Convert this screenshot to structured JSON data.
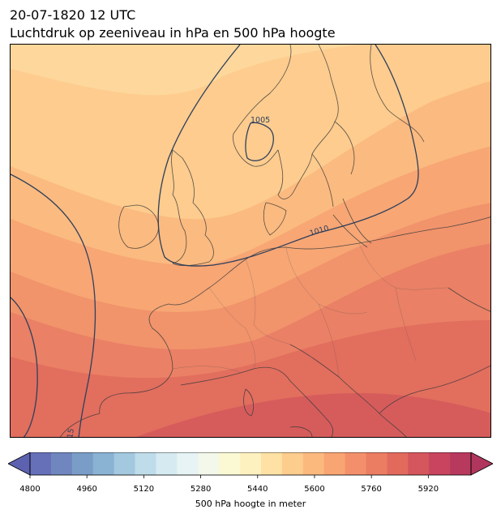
{
  "header": {
    "datetime": "20-07-1820 12 UTC",
    "subtitle": "Luchtdruk op zeeniveau in hPa en 500 hPa hoogte"
  },
  "map": {
    "contour_labels": [
      "1005",
      "1010",
      "15"
    ],
    "colors": {
      "pressure_contour": "#2e3f5c",
      "coastline": "#3a3a3a"
    },
    "fill_bands": [
      "#fdd59a",
      "#fdc689",
      "#fbb47c",
      "#f7a174",
      "#f08d6a",
      "#e97a62",
      "#e06a5c",
      "#d4565a"
    ]
  },
  "colorbar": {
    "ticks": [
      "4800",
      "4960",
      "5120",
      "5280",
      "5440",
      "5600",
      "5760",
      "5920"
    ],
    "tick_values": [
      4800,
      4960,
      5120,
      5280,
      5440,
      5600,
      5760,
      5920
    ],
    "range": [
      4800,
      6040
    ],
    "step": 40,
    "label": "500 hPa hoogte in meter",
    "colors": [
      "#6670b8",
      "#6f86be",
      "#7a9dc8",
      "#8ab2d3",
      "#a3c8df",
      "#bfdcea",
      "#d6ebf1",
      "#e7f3f4",
      "#f3f8ea",
      "#fbf9d4",
      "#fef1c0",
      "#fee1a4",
      "#fdcd8d",
      "#fcb97d",
      "#f9a473",
      "#f3906b",
      "#eb7d63",
      "#e16a5d",
      "#d5565c",
      "#c9445e",
      "#b73a5e"
    ]
  }
}
